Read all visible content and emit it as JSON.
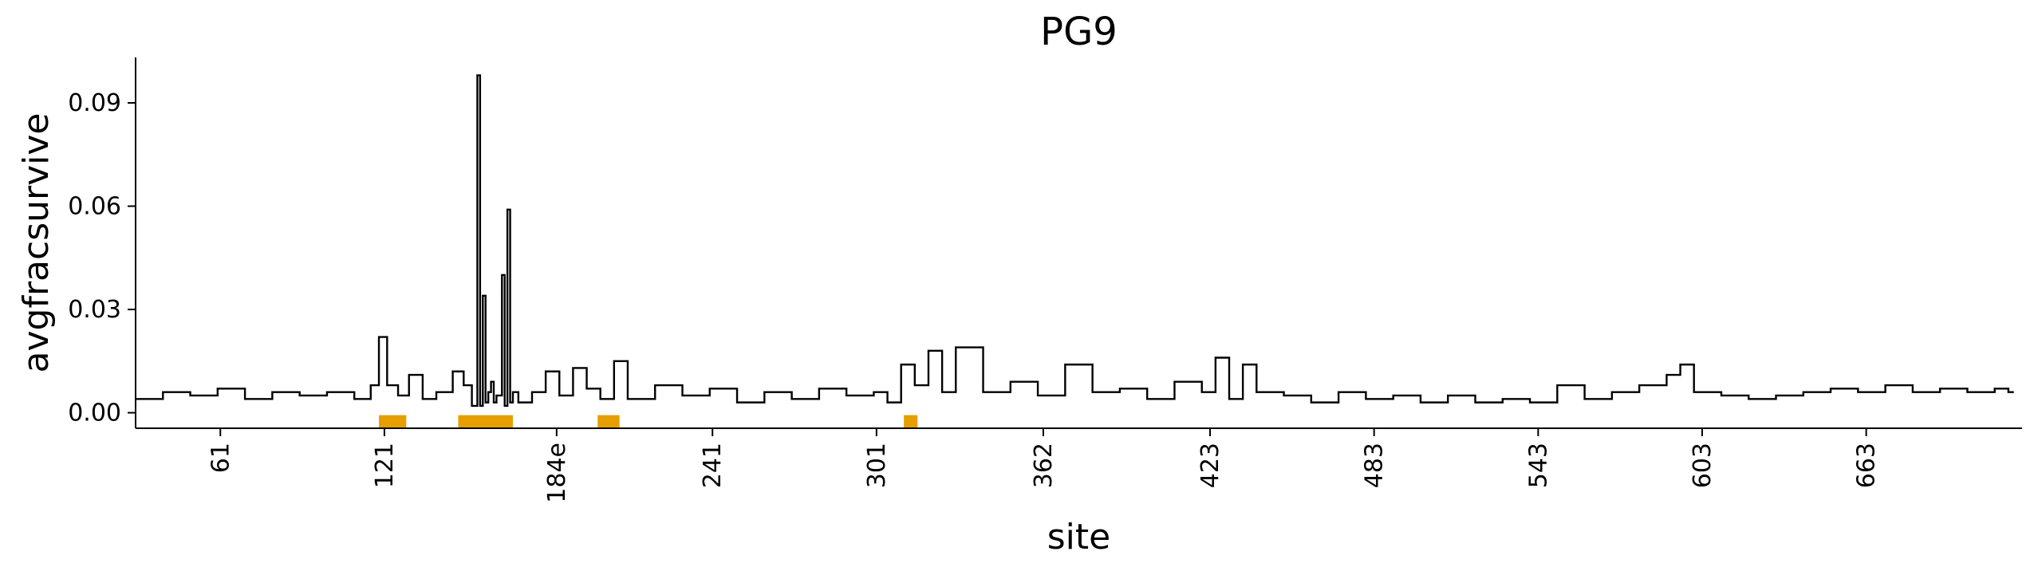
{
  "chart_data": {
    "type": "line",
    "title": "PG9",
    "xlabel": "site",
    "ylabel": "avgfracsurvive",
    "xlim": [
      30,
      720
    ],
    "ylim": [
      -0.0045,
      0.1032
    ],
    "yticks": [
      0.0,
      0.03,
      0.06,
      0.09
    ],
    "ytick_labels": [
      "0.00",
      "0.03",
      "0.06",
      "0.09"
    ],
    "xticks": [
      61,
      121,
      184,
      241,
      301,
      362,
      423,
      483,
      543,
      603,
      663
    ],
    "xtick_labels": [
      "61",
      "121",
      "184e",
      "241",
      "301",
      "362",
      "423",
      "483",
      "543",
      "603",
      "663"
    ],
    "grid": false,
    "line_color": "#000000",
    "highlight_color": "#E69F00",
    "highlight_regions": [
      [
        119,
        129
      ],
      [
        148,
        168
      ],
      [
        199,
        207
      ],
      [
        311,
        316
      ]
    ],
    "series": [
      {
        "x": [
          30,
          40,
          50,
          60,
          70,
          80,
          90,
          100,
          110,
          116,
          119,
          122,
          126,
          130,
          135,
          140,
          146,
          150,
          153,
          155,
          156,
          157,
          158,
          159,
          160,
          161,
          162,
          164,
          165,
          166,
          167,
          168,
          170,
          175,
          180,
          185,
          190,
          195,
          200,
          205,
          210,
          220,
          230,
          240,
          250,
          260,
          270,
          280,
          290,
          300,
          305,
          310,
          315,
          320,
          325,
          330,
          340,
          350,
          360,
          370,
          380,
          390,
          400,
          410,
          420,
          425,
          430,
          435,
          440,
          450,
          460,
          470,
          480,
          490,
          500,
          510,
          520,
          530,
          540,
          550,
          560,
          570,
          580,
          590,
          595,
          600,
          610,
          620,
          630,
          640,
          650,
          660,
          670,
          680,
          690,
          700,
          710,
          715
        ],
        "y": [
          0.004,
          0.006,
          0.005,
          0.007,
          0.004,
          0.006,
          0.005,
          0.006,
          0.004,
          0.008,
          0.022,
          0.008,
          0.005,
          0.011,
          0.004,
          0.006,
          0.012,
          0.008,
          0.002,
          0.098,
          0.002,
          0.034,
          0.003,
          0.006,
          0.009,
          0.003,
          0.005,
          0.04,
          0.002,
          0.059,
          0.003,
          0.006,
          0.003,
          0.006,
          0.012,
          0.005,
          0.013,
          0.007,
          0.004,
          0.015,
          0.004,
          0.008,
          0.005,
          0.007,
          0.003,
          0.006,
          0.004,
          0.007,
          0.005,
          0.006,
          0.003,
          0.014,
          0.008,
          0.018,
          0.006,
          0.019,
          0.006,
          0.009,
          0.005,
          0.014,
          0.006,
          0.007,
          0.004,
          0.009,
          0.006,
          0.016,
          0.004,
          0.014,
          0.006,
          0.005,
          0.003,
          0.006,
          0.004,
          0.005,
          0.003,
          0.005,
          0.003,
          0.004,
          0.003,
          0.008,
          0.004,
          0.006,
          0.008,
          0.011,
          0.014,
          0.006,
          0.005,
          0.004,
          0.005,
          0.006,
          0.007,
          0.006,
          0.008,
          0.006,
          0.007,
          0.006,
          0.007,
          0.006
        ]
      }
    ]
  }
}
